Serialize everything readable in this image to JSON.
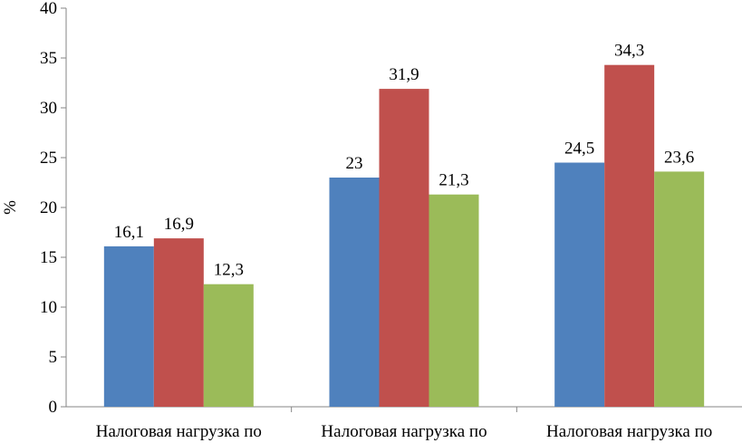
{
  "chart_data": {
    "type": "bar",
    "title": "",
    "xlabel": "",
    "ylabel": "%",
    "ylim": [
      0,
      40
    ],
    "ytick_step": 5,
    "yticks": [
      "0",
      "5",
      "10",
      "15",
      "20",
      "25",
      "30",
      "35",
      "40"
    ],
    "grid": false,
    "legend": "none",
    "categories": [
      "Налоговая нагрузка по",
      "Налоговая нагрузка по",
      "Налоговая нагрузка по"
    ],
    "series": [
      {
        "values": [
          16.1,
          23,
          24.5
        ],
        "labels": [
          "16,1",
          "23",
          "24,5"
        ],
        "color": "#4f81bd"
      },
      {
        "values": [
          16.9,
          31.9,
          34.3
        ],
        "labels": [
          "16,9",
          "31,9",
          "34,3"
        ],
        "color": "#c0504d"
      },
      {
        "values": [
          12.3,
          21.3,
          23.6
        ],
        "labels": [
          "12,3",
          "21,3",
          "23,6"
        ],
        "color": "#9bbb59"
      }
    ]
  }
}
